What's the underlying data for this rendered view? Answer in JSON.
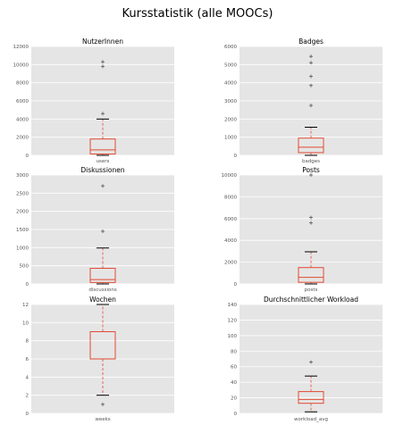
{
  "suptitle": "Kursstatistik (alle MOOCs)",
  "colors": {
    "panel_bg": "#e5e5e5",
    "grid": "#ffffff",
    "box": "#e24a33",
    "median": "#e24a33",
    "whisker": "#e24a33",
    "cap": "#000000",
    "flier": "#555555"
  },
  "chart_data": [
    {
      "type": "box",
      "title": "NutzerInnen",
      "xlabel": "users",
      "ylim": [
        0,
        12000
      ],
      "yticks": [
        0,
        2000,
        4000,
        6000,
        8000,
        10000,
        12000
      ],
      "box": {
        "whislo": 0,
        "q1": 150,
        "med": 600,
        "q3": 1800,
        "whishi": 4000,
        "fliers": [
          4600,
          9800,
          10300
        ]
      }
    },
    {
      "type": "box",
      "title": "Badges",
      "xlabel": "badges",
      "ylim": [
        0,
        6000
      ],
      "yticks": [
        0,
        1000,
        2000,
        3000,
        4000,
        5000,
        6000
      ],
      "box": {
        "whislo": 0,
        "q1": 150,
        "med": 450,
        "q3": 950,
        "whishi": 1550,
        "fliers": [
          2750,
          3850,
          4350,
          5100,
          5450
        ]
      }
    },
    {
      "type": "box",
      "title": "Diskussionen",
      "xlabel": "discussions",
      "ylim": [
        0,
        3000
      ],
      "yticks": [
        0,
        500,
        1000,
        1500,
        2000,
        2500,
        3000
      ],
      "box": {
        "whislo": 0,
        "q1": 40,
        "med": 120,
        "q3": 430,
        "whishi": 990,
        "fliers": [
          1450,
          2700
        ]
      }
    },
    {
      "type": "box",
      "title": "Posts",
      "xlabel": "posts",
      "ylim": [
        0,
        10000
      ],
      "yticks": [
        0,
        2000,
        4000,
        6000,
        8000,
        10000
      ],
      "box": {
        "whislo": 0,
        "q1": 150,
        "med": 600,
        "q3": 1500,
        "whishi": 2950,
        "fliers": [
          5600,
          6100,
          10000
        ]
      }
    },
    {
      "type": "box",
      "title": "Wochen",
      "xlabel": "weeks",
      "ylim": [
        0,
        12
      ],
      "yticks": [
        0,
        2,
        4,
        6,
        8,
        10,
        12
      ],
      "box": {
        "whislo": 2,
        "q1": 6,
        "med": 6,
        "q3": 9,
        "whishi": 12,
        "fliers": [
          1
        ]
      }
    },
    {
      "type": "box",
      "title": "Durchschnittlicher Workload",
      "xlabel": "workload_avg",
      "ylim": [
        0,
        140
      ],
      "yticks": [
        0,
        20,
        40,
        60,
        80,
        100,
        120,
        140
      ],
      "box": {
        "whislo": 2,
        "q1": 13,
        "med": 18,
        "q3": 28,
        "whishi": 48,
        "fliers": [
          66
        ]
      }
    }
  ]
}
